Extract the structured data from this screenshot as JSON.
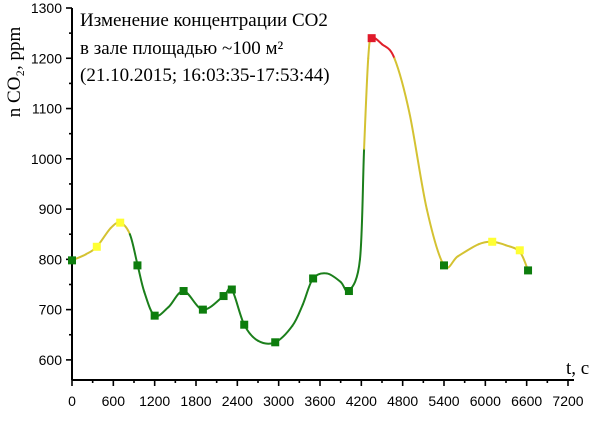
{
  "chart_data": {
    "type": "line",
    "title_lines": [
      "Изменение концентрации СО2",
      "в зале площадью ~100 м²",
      "(21.10.2015; 16:03:35-17:53:44)"
    ],
    "xlabel": "t, c",
    "ylabel": "n CO₂, ppm",
    "xlim": [
      0,
      7200
    ],
    "ylim": [
      560,
      1300
    ],
    "x_ticks": [
      0,
      600,
      1200,
      1800,
      2400,
      3000,
      3600,
      4200,
      4800,
      5400,
      6000,
      6600,
      7200
    ],
    "y_ticks": [
      600,
      700,
      800,
      900,
      1000,
      1100,
      1200,
      1300
    ],
    "grid": false,
    "colors": {
      "low": "#1b7f1b",
      "medium": "#d4c232",
      "high": "#e0202a",
      "marker_low": "#0d7d0d",
      "marker_medium": "#ffff33",
      "marker_high": "#e01a2a"
    },
    "curve": [
      {
        "x": 0,
        "y": 798,
        "level": "medium"
      },
      {
        "x": 200,
        "y": 810,
        "level": "medium"
      },
      {
        "x": 360,
        "y": 825,
        "level": "medium"
      },
      {
        "x": 560,
        "y": 862,
        "level": "medium"
      },
      {
        "x": 700,
        "y": 873,
        "level": "medium"
      },
      {
        "x": 840,
        "y": 850,
        "level": "low"
      },
      {
        "x": 950,
        "y": 790,
        "level": "low"
      },
      {
        "x": 1050,
        "y": 735,
        "level": "low"
      },
      {
        "x": 1200,
        "y": 688,
        "level": "low"
      },
      {
        "x": 1400,
        "y": 705,
        "level": "low"
      },
      {
        "x": 1620,
        "y": 737,
        "level": "low"
      },
      {
        "x": 1900,
        "y": 700,
        "level": "low"
      },
      {
        "x": 2200,
        "y": 727,
        "level": "low"
      },
      {
        "x": 2320,
        "y": 740,
        "level": "low"
      },
      {
        "x": 2500,
        "y": 670,
        "level": "low"
      },
      {
        "x": 2700,
        "y": 638,
        "level": "low"
      },
      {
        "x": 2950,
        "y": 635,
        "level": "low"
      },
      {
        "x": 3200,
        "y": 668,
        "level": "low"
      },
      {
        "x": 3350,
        "y": 710,
        "level": "low"
      },
      {
        "x": 3500,
        "y": 762,
        "level": "low"
      },
      {
        "x": 3700,
        "y": 772,
        "level": "low"
      },
      {
        "x": 3900,
        "y": 755,
        "level": "low"
      },
      {
        "x": 4020,
        "y": 737,
        "level": "low"
      },
      {
        "x": 4180,
        "y": 800,
        "level": "low"
      },
      {
        "x": 4240,
        "y": 1020,
        "level": "medium"
      },
      {
        "x": 4300,
        "y": 1200,
        "level": "medium"
      },
      {
        "x": 4350,
        "y": 1240,
        "level": "high"
      },
      {
        "x": 4500,
        "y": 1228,
        "level": "high"
      },
      {
        "x": 4680,
        "y": 1200,
        "level": "medium"
      },
      {
        "x": 4900,
        "y": 1090,
        "level": "medium"
      },
      {
        "x": 5150,
        "y": 900,
        "level": "medium"
      },
      {
        "x": 5400,
        "y": 788,
        "level": "medium"
      },
      {
        "x": 5600,
        "y": 806,
        "level": "medium"
      },
      {
        "x": 5900,
        "y": 830,
        "level": "medium"
      },
      {
        "x": 6100,
        "y": 835,
        "level": "medium"
      },
      {
        "x": 6300,
        "y": 828,
        "level": "medium"
      },
      {
        "x": 6500,
        "y": 815,
        "level": "medium"
      },
      {
        "x": 6620,
        "y": 778,
        "level": "low"
      }
    ],
    "markers": [
      {
        "x": 0,
        "y": 798,
        "level": "low"
      },
      {
        "x": 360,
        "y": 825,
        "level": "medium"
      },
      {
        "x": 700,
        "y": 873,
        "level": "medium"
      },
      {
        "x": 950,
        "y": 788,
        "level": "low"
      },
      {
        "x": 1200,
        "y": 688,
        "level": "low"
      },
      {
        "x": 1620,
        "y": 737,
        "level": "low"
      },
      {
        "x": 1900,
        "y": 700,
        "level": "low"
      },
      {
        "x": 2200,
        "y": 727,
        "level": "low"
      },
      {
        "x": 2320,
        "y": 740,
        "level": "low"
      },
      {
        "x": 2500,
        "y": 670,
        "level": "low"
      },
      {
        "x": 2950,
        "y": 635,
        "level": "low"
      },
      {
        "x": 3500,
        "y": 762,
        "level": "low"
      },
      {
        "x": 4020,
        "y": 737,
        "level": "low"
      },
      {
        "x": 4350,
        "y": 1240,
        "level": "high"
      },
      {
        "x": 5400,
        "y": 788,
        "level": "low"
      },
      {
        "x": 6100,
        "y": 835,
        "level": "medium"
      },
      {
        "x": 6500,
        "y": 818,
        "level": "medium"
      },
      {
        "x": 6620,
        "y": 778,
        "level": "low"
      }
    ]
  }
}
